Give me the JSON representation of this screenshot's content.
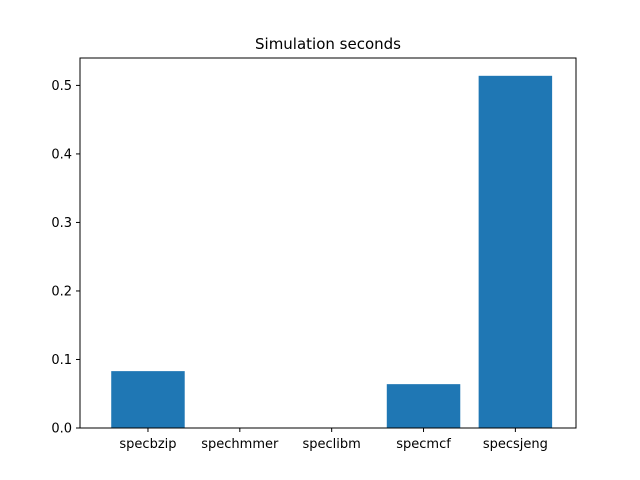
{
  "chart_data": {
    "type": "bar",
    "title": "Simulation seconds",
    "xlabel": "",
    "ylabel": "",
    "categories": [
      "specbzip",
      "spechmmer",
      "speclibm",
      "specmcf",
      "specsjeng"
    ],
    "values": [
      0.083,
      0.0,
      0.0,
      0.064,
      0.514
    ],
    "ylim": [
      0,
      0.54
    ],
    "yticks": [
      0.0,
      0.1,
      0.2,
      0.3,
      0.4,
      0.5
    ],
    "ytick_labels": [
      "0.0",
      "0.1",
      "0.2",
      "0.3",
      "0.4",
      "0.5"
    ],
    "bar_color": "#1f77b4",
    "grid": false,
    "legend": "none"
  }
}
